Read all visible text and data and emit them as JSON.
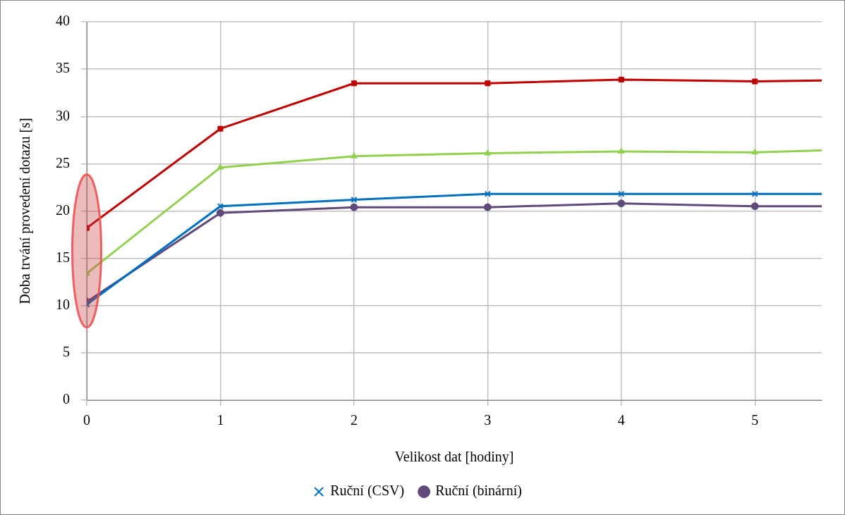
{
  "chart_data": {
    "type": "line",
    "xlabel": "Velikost dat [hodiny]",
    "ylabel": "Doba trvání provedení dotazu [s]",
    "x": [
      0,
      1,
      2,
      3,
      4,
      5,
      5.5
    ],
    "series": [
      {
        "name": "Ruční (CSV)",
        "color": "#0070c0",
        "marker": "cross",
        "values": [
          10.1,
          20.5,
          21.2,
          21.8,
          21.8,
          21.8,
          21.8
        ]
      },
      {
        "color": "#92d050",
        "marker": "triangle",
        "values": [
          13.4,
          24.6,
          25.8,
          26.1,
          26.3,
          26.2,
          26.4
        ]
      },
      {
        "color": "#c00000",
        "marker": "square",
        "values": [
          18.2,
          28.7,
          33.5,
          33.5,
          33.9,
          33.7,
          33.8
        ]
      },
      {
        "name": "Ruční (binární)",
        "color": "#604a7b",
        "marker": "circle",
        "values": [
          10.4,
          19.8,
          20.4,
          20.4,
          20.8,
          20.5,
          20.5
        ]
      }
    ],
    "xlim": [
      0,
      5.5
    ],
    "xticks": [
      0,
      1,
      2,
      3,
      4,
      5
    ],
    "ylim": [
      0,
      40
    ],
    "yticks": [
      0,
      5,
      10,
      15,
      20,
      25,
      30,
      35,
      40
    ],
    "grid": true,
    "legend": "bottom",
    "line_style": "solid"
  }
}
